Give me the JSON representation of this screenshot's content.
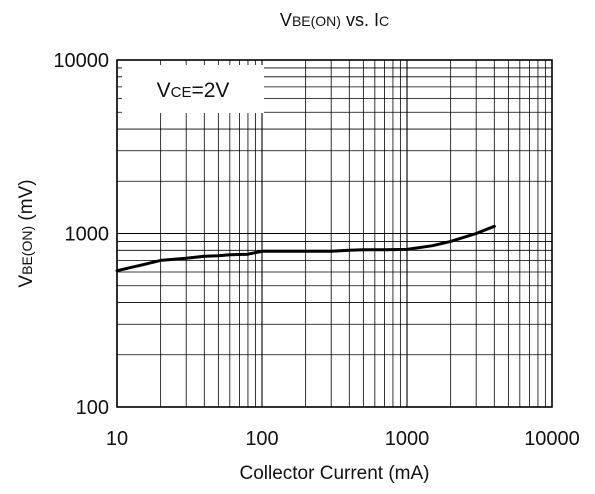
{
  "chart_data": {
    "type": "line",
    "title": {
      "parts": [
        {
          "text": "V",
          "sub": false
        },
        {
          "text": "BE(ON)",
          "sub": true
        },
        {
          "text": " vs. I",
          "sub": false
        },
        {
          "text": "C",
          "sub": true
        }
      ]
    },
    "xlabel": "Collector Current (mA)",
    "ylabel": {
      "parts": [
        {
          "text": "V",
          "sub": false
        },
        {
          "text": "BE(ON)",
          "sub": true
        },
        {
          "text": " (mV)",
          "sub": false
        }
      ]
    },
    "x_scale": "log",
    "y_scale": "log",
    "xlim": [
      10,
      10000
    ],
    "ylim": [
      100,
      10000
    ],
    "x_ticks": [
      {
        "value": 10,
        "label": "10"
      },
      {
        "value": 100,
        "label": "100"
      },
      {
        "value": 1000,
        "label": "1000"
      },
      {
        "value": 10000,
        "label": "10000"
      }
    ],
    "y_ticks": [
      {
        "value": 100,
        "label": "100"
      },
      {
        "value": 1000,
        "label": "1000"
      },
      {
        "value": 10000,
        "label": "10000"
      }
    ],
    "grid": true,
    "annotation": {
      "parts": [
        {
          "text": "V",
          "sub": false
        },
        {
          "text": "CE",
          "sub": true
        },
        {
          "text": "=2V",
          "sub": false
        }
      ],
      "placement": "top-left"
    },
    "series": [
      {
        "color": "#000000",
        "points": [
          {
            "x": 10,
            "y": 610
          },
          {
            "x": 15,
            "y": 660
          },
          {
            "x": 20,
            "y": 700
          },
          {
            "x": 30,
            "y": 720
          },
          {
            "x": 40,
            "y": 740
          },
          {
            "x": 50,
            "y": 745
          },
          {
            "x": 60,
            "y": 755
          },
          {
            "x": 80,
            "y": 760
          },
          {
            "x": 100,
            "y": 790
          },
          {
            "x": 200,
            "y": 790
          },
          {
            "x": 300,
            "y": 790
          },
          {
            "x": 400,
            "y": 800
          },
          {
            "x": 500,
            "y": 805
          },
          {
            "x": 700,
            "y": 805
          },
          {
            "x": 1000,
            "y": 810
          },
          {
            "x": 1500,
            "y": 850
          },
          {
            "x": 2000,
            "y": 900
          },
          {
            "x": 3000,
            "y": 1000
          },
          {
            "x": 4000,
            "y": 1100
          }
        ]
      }
    ]
  }
}
